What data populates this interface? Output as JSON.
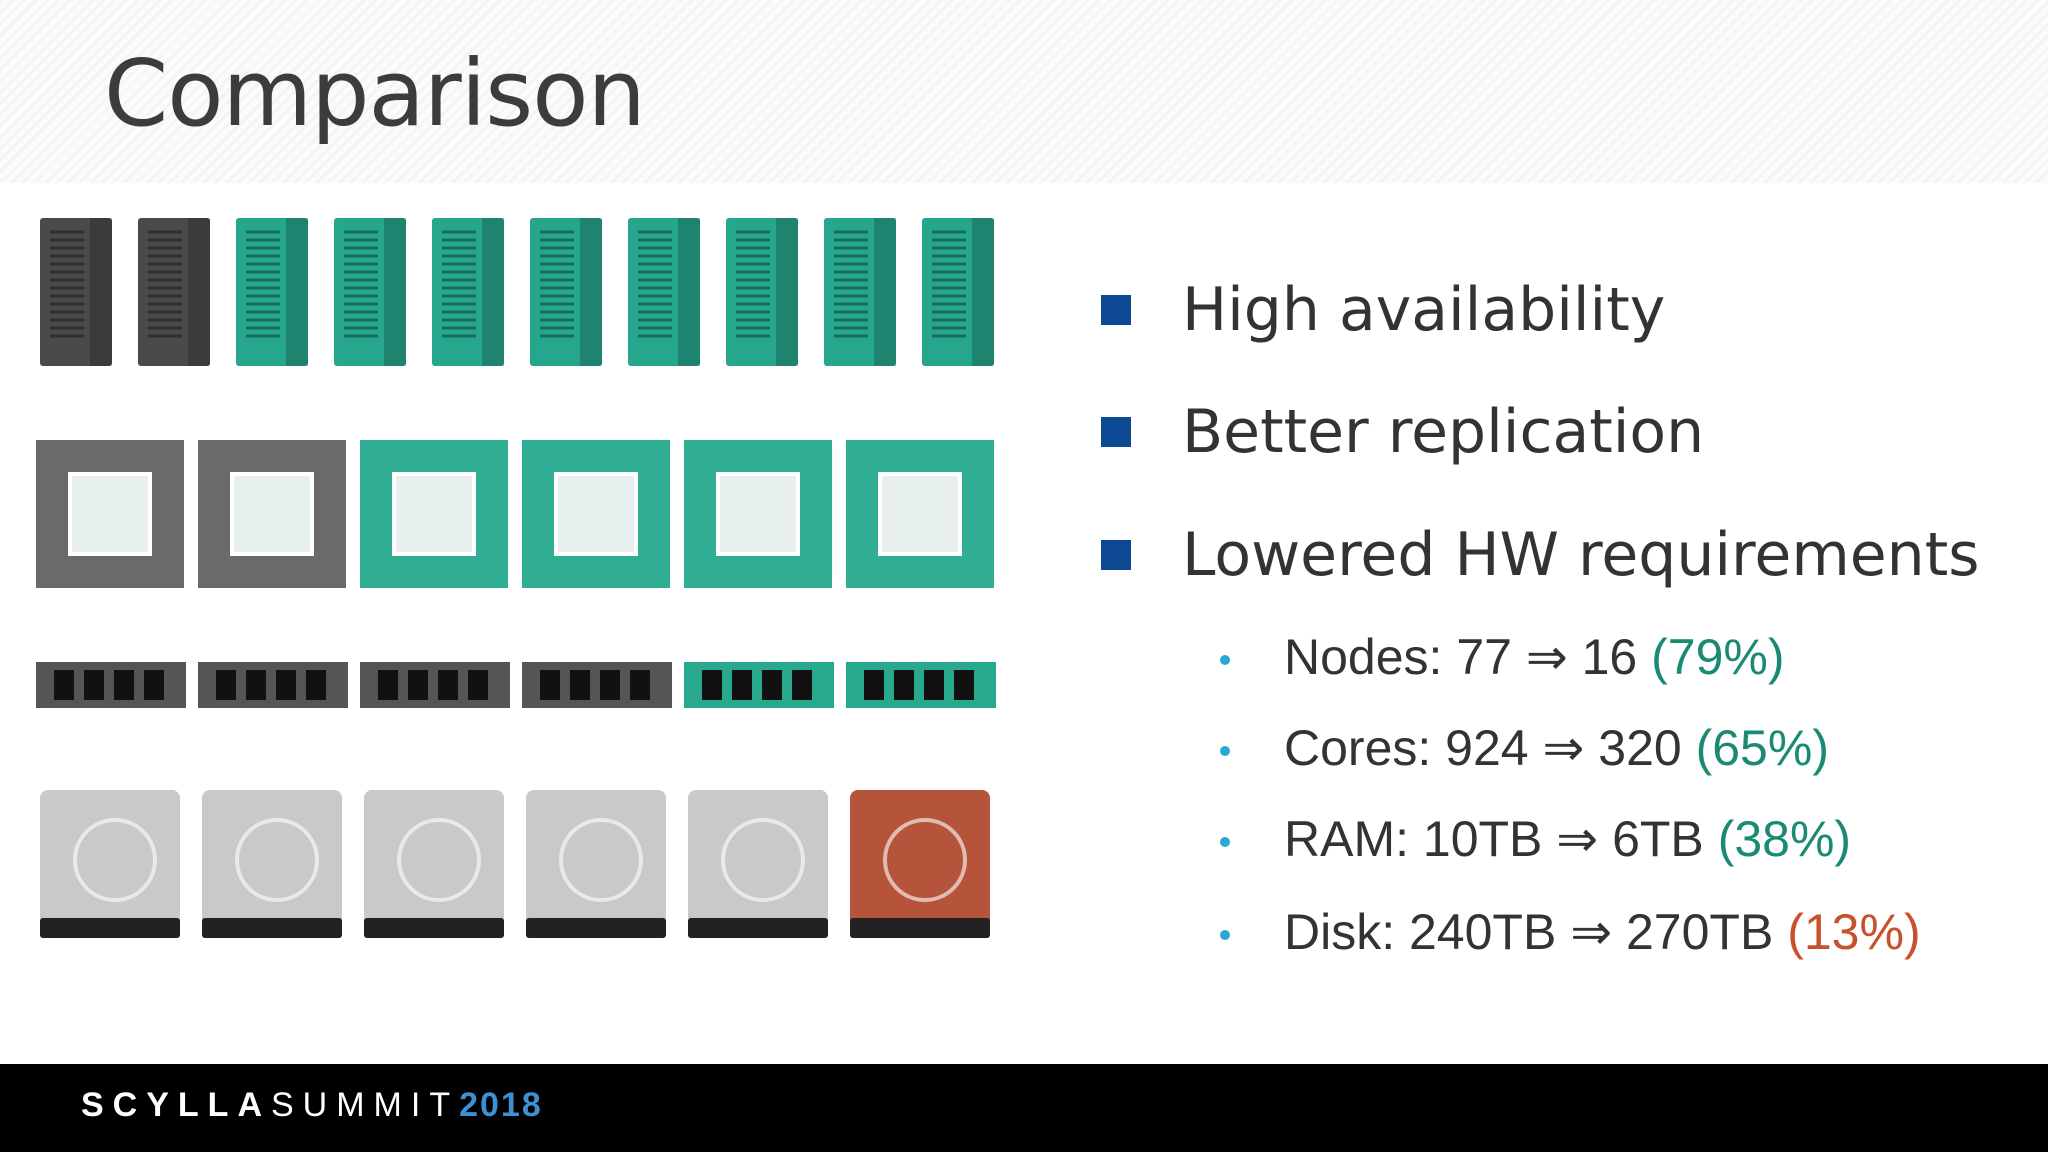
{
  "header": {
    "title": "Comparison"
  },
  "bullets": [
    {
      "text": "High availability"
    },
    {
      "text": "Better replication"
    },
    {
      "text": "Lowered HW requirements",
      "items": [
        {
          "label": "Nodes: 77 ⇒ 16",
          "change": "(79%)",
          "color": "#1a8a74"
        },
        {
          "label": "Cores: 924 ⇒ 320",
          "change": "(65%)",
          "color": "#1a8a74"
        },
        {
          "label": "RAM: 10TB ⇒ 6TB",
          "change": "(38%)",
          "color": "#1a8a74"
        },
        {
          "label": "Disk: 240TB ⇒ 270TB",
          "change": "(13%)",
          "color": "#c8502a"
        }
      ]
    }
  ],
  "footer": {
    "brand_bold": "SCYLLA",
    "brand_light": "SUMMIT",
    "year": "2018"
  }
}
